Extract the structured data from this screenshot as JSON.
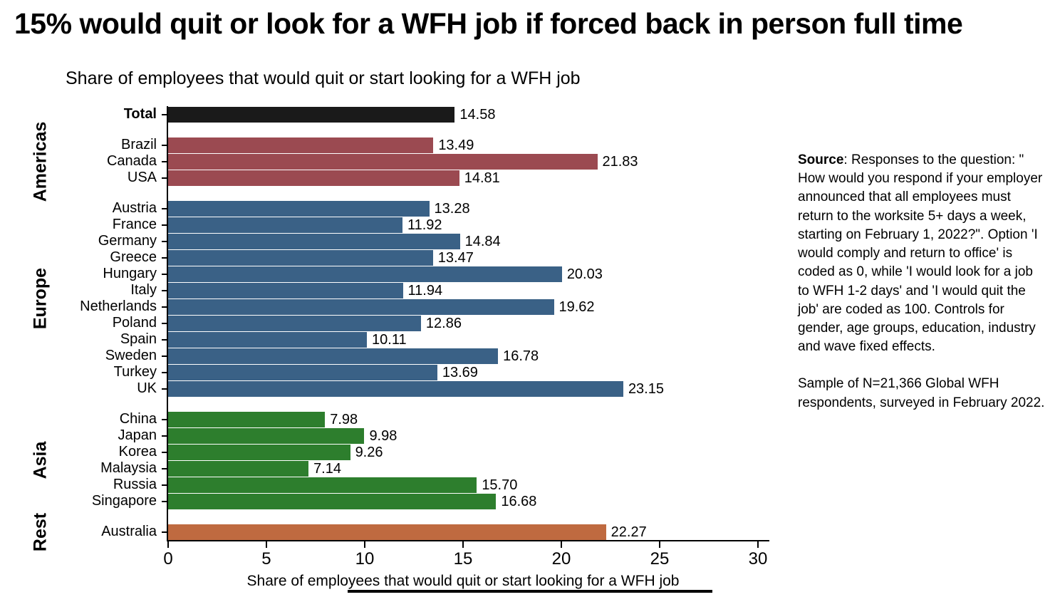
{
  "title": "15% would quit or look for a WFH job if forced back in person full time",
  "chart_data": {
    "type": "bar",
    "orientation": "horizontal",
    "subtitle": "Share of employees that would quit or start looking for a WFH job",
    "xlabel": "Share of employees that would quit or start looking for a WFH job",
    "xlim": [
      0,
      30
    ],
    "xticks": [
      0,
      5,
      10,
      15,
      20,
      25,
      30
    ],
    "grid": false,
    "groups": [
      {
        "region": "",
        "color": "#1a1a1a",
        "items": [
          {
            "label": "Total",
            "value": 14.58,
            "bold": true
          }
        ]
      },
      {
        "region": "Americas",
        "color": "#9b4a51",
        "items": [
          {
            "label": "Brazil",
            "value": 13.49
          },
          {
            "label": "Canada",
            "value": 21.83
          },
          {
            "label": "USA",
            "value": 14.81
          }
        ]
      },
      {
        "region": "Europe",
        "color": "#3a6186",
        "items": [
          {
            "label": "Austria",
            "value": 13.28
          },
          {
            "label": "France",
            "value": 11.92
          },
          {
            "label": "Germany",
            "value": 14.84
          },
          {
            "label": "Greece",
            "value": 13.47
          },
          {
            "label": "Hungary",
            "value": 20.03
          },
          {
            "label": "Italy",
            "value": 11.94
          },
          {
            "label": "Netherlands",
            "value": 19.62
          },
          {
            "label": "Poland",
            "value": 12.86
          },
          {
            "label": "Spain",
            "value": 10.11
          },
          {
            "label": "Sweden",
            "value": 16.78
          },
          {
            "label": "Turkey",
            "value": 13.69
          },
          {
            "label": "UK",
            "value": 23.15
          }
        ]
      },
      {
        "region": "Asia",
        "color": "#2d7e2d",
        "items": [
          {
            "label": "China",
            "value": 7.98
          },
          {
            "label": "Japan",
            "value": 9.98
          },
          {
            "label": "Korea",
            "value": 9.26
          },
          {
            "label": "Malaysia",
            "value": 7.14
          },
          {
            "label": "Russia",
            "value": 15.7
          },
          {
            "label": "Singapore",
            "value": 16.68
          }
        ]
      },
      {
        "region": "Rest",
        "color": "#bf6a40",
        "items": [
          {
            "label": "Australia",
            "value": 22.27
          }
        ]
      }
    ]
  },
  "source_panel": {
    "source_label": "Source",
    "paragraph1_rest": ": Responses to the question: \" How would you respond if your employer announced that all employees must return to the worksite 5+ days a week, starting on February 1, 2022?\". Option 'I would comply and return to office' is coded as 0, while 'I would look for a job to WFH 1-2 days' and 'I would quit the job' are coded as 100. Controls for gender, age groups, education, industry and wave fixed effects.",
    "paragraph2": "Sample of N=21,366 Global WFH respondents, surveyed in February 2022."
  }
}
